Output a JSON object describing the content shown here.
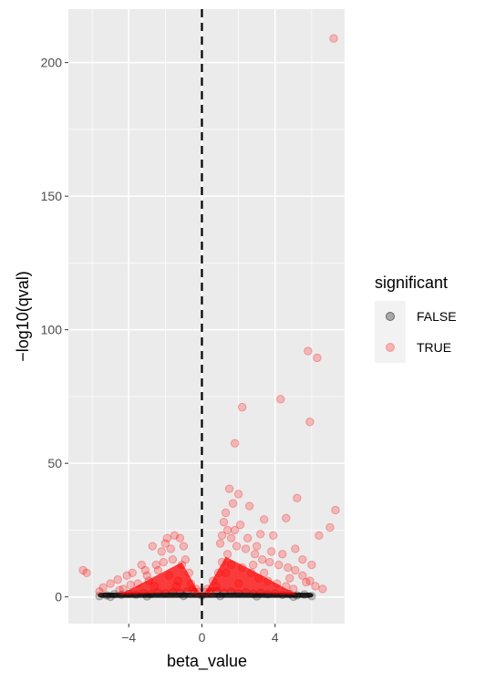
{
  "chart_data": {
    "type": "scatter",
    "xlabel": "beta_value",
    "ylabel": "−log10(qval)",
    "xlim": [
      -7.3,
      7.8
    ],
    "ylim": [
      -10,
      220
    ],
    "x_ticks": [
      -4,
      0,
      4
    ],
    "x_tick_labels": [
      "−4",
      "0",
      "4"
    ],
    "y_ticks": [
      0,
      50,
      100,
      150,
      200
    ],
    "y_tick_labels": [
      "0",
      "50",
      "100",
      "150",
      "200"
    ],
    "vline": {
      "x": 0,
      "style": "dashed",
      "color": "#000000"
    },
    "grid": true,
    "panel_background": "#ebebeb",
    "legend": {
      "title": "significant",
      "position": "right",
      "entries": [
        {
          "label": "FALSE",
          "color": "#000000"
        },
        {
          "label": "TRUE",
          "color": "#ff0000"
        }
      ]
    },
    "series": [
      {
        "name": "FALSE",
        "color": "#000000",
        "points": [
          [
            -5.6,
            0.3
          ],
          [
            -5.2,
            0.6
          ],
          [
            -4.8,
            1.0
          ],
          [
            -4.4,
            0.8
          ],
          [
            -4.0,
            1.2
          ],
          [
            -3.6,
            0.9
          ],
          [
            -3.2,
            1.4
          ],
          [
            -2.8,
            1.1
          ],
          [
            -2.4,
            1.6
          ],
          [
            -2.0,
            1.3
          ],
          [
            -1.6,
            1.8
          ],
          [
            -1.2,
            1.5
          ],
          [
            -0.8,
            2.0
          ],
          [
            -0.4,
            1.7
          ],
          [
            0.0,
            0.5
          ],
          [
            0.4,
            1.8
          ],
          [
            0.8,
            2.1
          ],
          [
            1.2,
            1.6
          ],
          [
            1.6,
            1.9
          ],
          [
            2.0,
            1.4
          ],
          [
            2.4,
            1.7
          ],
          [
            2.8,
            1.2
          ],
          [
            3.2,
            1.5
          ],
          [
            3.6,
            1.0
          ],
          [
            4.0,
            1.3
          ],
          [
            4.4,
            0.8
          ],
          [
            4.8,
            1.1
          ],
          [
            5.2,
            0.6
          ],
          [
            5.6,
            0.9
          ],
          [
            6.0,
            0.3
          ],
          [
            -3.0,
            0.2
          ],
          [
            -1.0,
            0.4
          ],
          [
            1.0,
            0.3
          ],
          [
            3.0,
            0.2
          ],
          [
            5.0,
            0.1
          ],
          [
            -5.0,
            0.1
          ]
        ]
      },
      {
        "name": "TRUE",
        "color": "#ff0000",
        "points": [
          [
            7.2,
            209
          ],
          [
            5.8,
            92
          ],
          [
            6.3,
            89.5
          ],
          [
            4.3,
            74
          ],
          [
            2.2,
            71
          ],
          [
            5.9,
            65.5
          ],
          [
            1.8,
            57.5
          ],
          [
            1.5,
            40.5
          ],
          [
            2.0,
            38.5
          ],
          [
            1.7,
            35
          ],
          [
            1.3,
            31.5
          ],
          [
            5.2,
            37
          ],
          [
            7.3,
            32.5
          ],
          [
            2.6,
            34
          ],
          [
            3.4,
            29
          ],
          [
            4.6,
            29.5
          ],
          [
            1.2,
            28
          ],
          [
            2.1,
            27
          ],
          [
            1.8,
            25
          ],
          [
            7.0,
            26
          ],
          [
            6.4,
            23
          ],
          [
            3.2,
            23.5
          ],
          [
            3.9,
            23
          ],
          [
            1.1,
            23
          ],
          [
            1.6,
            22
          ],
          [
            -1.5,
            23
          ],
          [
            -1.2,
            22
          ],
          [
            -1.9,
            22
          ],
          [
            -1.0,
            19
          ],
          [
            -1.7,
            18
          ],
          [
            -2.2,
            17
          ],
          [
            -2.7,
            19
          ],
          [
            -2.0,
            20
          ],
          [
            -0.9,
            14
          ],
          [
            -1.1,
            12
          ],
          [
            -3.3,
            12
          ],
          [
            -3.8,
            9
          ],
          [
            -6.3,
            9
          ],
          [
            -6.5,
            10
          ],
          [
            -4.1,
            8
          ],
          [
            -4.6,
            6.5
          ],
          [
            -5.0,
            5
          ],
          [
            -5.4,
            3.5
          ],
          [
            -3.0,
            8
          ],
          [
            -2.4,
            10
          ],
          [
            -1.8,
            8
          ],
          [
            -1.3,
            6
          ],
          [
            -0.6,
            5
          ],
          [
            -0.3,
            3
          ],
          [
            -2.6,
            4
          ],
          [
            -3.5,
            5
          ],
          [
            -4.3,
            3
          ],
          [
            0.3,
            3
          ],
          [
            0.6,
            6
          ],
          [
            0.9,
            9
          ],
          [
            1.1,
            13
          ],
          [
            1.4,
            16
          ],
          [
            1.9,
            19
          ],
          [
            2.4,
            18
          ],
          [
            2.9,
            16
          ],
          [
            3.3,
            14
          ],
          [
            3.7,
            13
          ],
          [
            4.2,
            12
          ],
          [
            4.7,
            11
          ],
          [
            5.1,
            10
          ],
          [
            5.5,
            8
          ],
          [
            5.9,
            6
          ],
          [
            6.2,
            4
          ],
          [
            2.2,
            11
          ],
          [
            2.7,
            9
          ],
          [
            3.1,
            7
          ],
          [
            3.6,
            6
          ],
          [
            4.1,
            5
          ],
          [
            4.6,
            4
          ],
          [
            5.0,
            3
          ],
          [
            1.6,
            12
          ],
          [
            1.3,
            9
          ],
          [
            0.8,
            4
          ],
          [
            2.0,
            5
          ],
          [
            1.0,
            20
          ],
          [
            1.4,
            25
          ],
          [
            2.5,
            22
          ],
          [
            3.0,
            19
          ],
          [
            3.8,
            17
          ],
          [
            4.4,
            16
          ],
          [
            5.1,
            18
          ],
          [
            5.5,
            14
          ],
          [
            6.0,
            12
          ],
          [
            -1.6,
            14
          ],
          [
            -2.1,
            13
          ],
          [
            -2.5,
            12
          ],
          [
            -3.1,
            10
          ],
          [
            -0.7,
            9
          ],
          [
            -1.4,
            4
          ],
          [
            -2.9,
            6
          ],
          [
            -3.9,
            4.5
          ],
          [
            -4.5,
            2.5
          ],
          [
            -5.6,
            2
          ],
          [
            6.6,
            3
          ],
          [
            5.7,
            5.5
          ],
          [
            4.8,
            7
          ],
          [
            3.4,
            9
          ],
          [
            2.8,
            12
          ],
          [
            0.5,
            2
          ],
          [
            -0.5,
            2.5
          ],
          [
            -0.2,
            1.8
          ],
          [
            0.2,
            1.8
          ]
        ]
      }
    ]
  }
}
